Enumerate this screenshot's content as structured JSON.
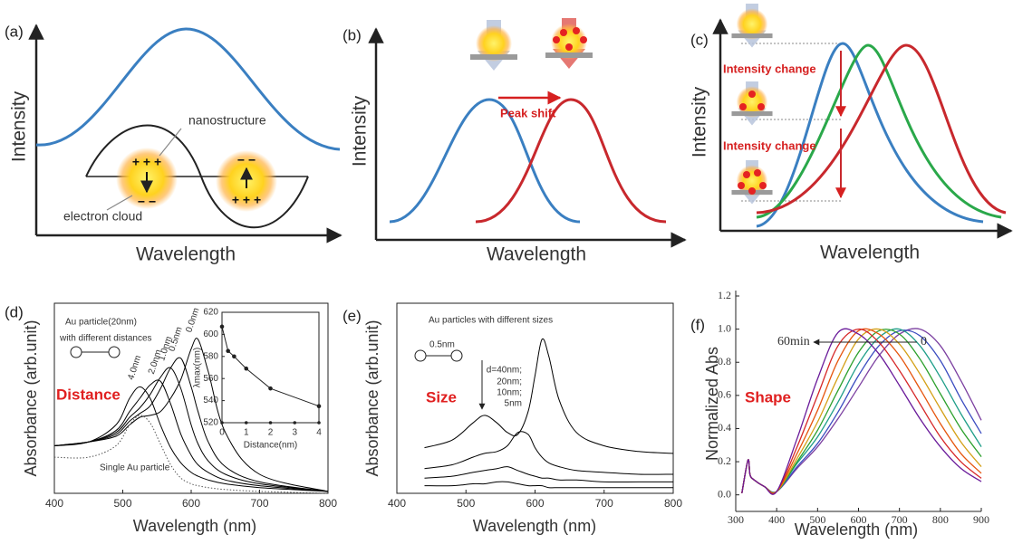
{
  "panels": [
    {
      "label": "(a)",
      "x_label": "Wavelength",
      "y_label": "Intensity",
      "annotations": [
        "nanostructure",
        "electron cloud",
        "+ + +",
        "− −",
        "− −",
        "+ + +"
      ]
    },
    {
      "label": "(b)",
      "x_label": "Wavelength",
      "y_label": "Intensity",
      "annotations": [
        "Peak shift"
      ]
    },
    {
      "label": "(c)",
      "x_label": "Wavelength",
      "y_label": "Intensity",
      "annotations": [
        "Intensity change",
        "Intensity change"
      ]
    }
  ],
  "chart_data": [
    {
      "type": "line",
      "label": "(d)",
      "x_label": "Wavelength (nm)",
      "y_label": "Absorbance (arb.unit)",
      "annotations": [
        "Au particle(20nm)",
        "with different distances",
        "Distance"
      ],
      "xlim": [
        400,
        800
      ],
      "xticks": [
        400,
        500,
        600,
        700,
        800
      ],
      "ylim": [
        0,
        1
      ],
      "x": [
        400,
        450,
        490,
        510,
        525,
        540,
        555,
        570,
        585,
        600,
        610,
        625,
        650,
        700,
        800
      ],
      "series": [
        {
          "name": "4.0nm",
          "color": "#000000",
          "values": [
            0.25,
            0.27,
            0.36,
            0.5,
            0.56,
            0.5,
            0.36,
            0.24,
            0.16,
            0.11,
            0.09,
            0.07,
            0.05,
            0.03,
            0.01
          ]
        },
        {
          "name": "2.0nm",
          "color": "#000000",
          "values": [
            0.25,
            0.27,
            0.33,
            0.43,
            0.5,
            0.57,
            0.59,
            0.47,
            0.31,
            0.2,
            0.15,
            0.11,
            0.07,
            0.04,
            0.01
          ]
        },
        {
          "name": "1.0nm",
          "color": "#000000",
          "values": [
            0.25,
            0.27,
            0.32,
            0.4,
            0.45,
            0.52,
            0.61,
            0.66,
            0.55,
            0.36,
            0.26,
            0.17,
            0.1,
            0.05,
            0.01
          ]
        },
        {
          "name": "0.5nm",
          "color": "#000000",
          "values": [
            0.25,
            0.27,
            0.31,
            0.38,
            0.42,
            0.46,
            0.55,
            0.66,
            0.71,
            0.56,
            0.43,
            0.27,
            0.14,
            0.06,
            0.01
          ]
        },
        {
          "name": "0.0nm",
          "color": "#000000",
          "values": [
            0.25,
            0.27,
            0.3,
            0.36,
            0.4,
            0.41,
            0.43,
            0.5,
            0.6,
            0.76,
            0.81,
            0.64,
            0.32,
            0.1,
            0.01
          ]
        },
        {
          "name": "Single Au particle",
          "color": "#555555",
          "dotted": true,
          "values": [
            0.19,
            0.19,
            0.25,
            0.36,
            0.41,
            0.37,
            0.26,
            0.15,
            0.08,
            0.05,
            0.04,
            0.03,
            0.02,
            0.01,
            0
          ]
        }
      ],
      "inset": {
        "type": "line",
        "x_label": "Distance(nm)",
        "y_label": "λmax(nm)",
        "x": [
          0,
          0.25,
          0.5,
          1,
          2,
          4
        ],
        "values": [
          607,
          585,
          580,
          569,
          551,
          535
        ],
        "xlim": [
          0,
          4
        ],
        "xticks": [
          0,
          1,
          2,
          3,
          4
        ],
        "ylim": [
          520,
          620
        ],
        "yticks": [
          520,
          540,
          560,
          580,
          600,
          620
        ]
      }
    },
    {
      "type": "line",
      "label": "(e)",
      "x_label": "Wavelength (nm)",
      "y_label": "Absorbance (arb.unit)",
      "annotations": [
        "Au particles with different sizes",
        "0.5nm",
        "Size"
      ],
      "xlim": [
        400,
        800
      ],
      "xticks": [
        400,
        500,
        600,
        700,
        800
      ],
      "ylim": [
        0,
        1
      ],
      "x": [
        440,
        480,
        510,
        527,
        545,
        560,
        575,
        590,
        600,
        610,
        620,
        635,
        660,
        700,
        750,
        800
      ],
      "series": [
        {
          "name": "d=40nm;",
          "color": "#000000",
          "values": [
            0.24,
            0.28,
            0.37,
            0.41,
            0.37,
            0.32,
            0.31,
            0.43,
            0.62,
            0.81,
            0.72,
            0.49,
            0.32,
            0.25,
            0.22,
            0.21
          ]
        },
        {
          "name": "20nm;",
          "color": "#000000",
          "values": [
            0.13,
            0.15,
            0.19,
            0.21,
            0.22,
            0.25,
            0.32,
            0.31,
            0.24,
            0.19,
            0.16,
            0.14,
            0.12,
            0.11,
            0.1,
            0.1
          ]
        },
        {
          "name": "10nm;",
          "color": "#000000",
          "values": [
            0.08,
            0.09,
            0.11,
            0.12,
            0.13,
            0.14,
            0.12,
            0.1,
            0.09,
            0.08,
            0.08,
            0.07,
            0.07,
            0.06,
            0.06,
            0.06
          ]
        },
        {
          "name": "5nm",
          "color": "#000000",
          "values": [
            0.04,
            0.04,
            0.05,
            0.05,
            0.06,
            0.06,
            0.05,
            0.04,
            0.04,
            0.04,
            0.03,
            0.03,
            0.03,
            0.03,
            0.03,
            0.03
          ]
        }
      ]
    },
    {
      "type": "line",
      "label": "(f)",
      "x_label": "Wavelength (nm)",
      "y_label": "Normalized Abs",
      "annotations": [
        "60min",
        "0",
        "Shape"
      ],
      "xlim": [
        300,
        900
      ],
      "xticks": [
        300,
        400,
        500,
        600,
        700,
        800,
        900
      ],
      "ylim": [
        -0.1,
        1.2
      ],
      "yticks": [
        {
          "value": 0,
          "label": "0.0"
        },
        {
          "value": 0.2,
          "label": "0.2"
        },
        {
          "value": 0.4,
          "label": "0.4"
        },
        {
          "value": 0.6,
          "label": "0.6"
        },
        {
          "value": 0.8,
          "label": "0.8"
        },
        {
          "value": 1,
          "label": "1.0"
        },
        {
          "value": 1.2,
          "label": "1.2"
        }
      ],
      "x": [
        315,
        330,
        335,
        345,
        370,
        400,
        450,
        500,
        550,
        600,
        650,
        700,
        750,
        800,
        850,
        900
      ],
      "series": [
        {
          "color": "#7b3fa0",
          "values": [
            0.01,
            0.21,
            0.12,
            0.09,
            0.05,
            0.02,
            0.16,
            0.29,
            0.46,
            0.65,
            0.84,
            0.97,
            1.0,
            0.9,
            0.69,
            0.45
          ]
        },
        {
          "color": "#3b4cc0",
          "values": [
            0.01,
            0.21,
            0.12,
            0.09,
            0.05,
            0.02,
            0.17,
            0.31,
            0.5,
            0.72,
            0.9,
            0.99,
            0.96,
            0.81,
            0.58,
            0.37
          ]
        },
        {
          "color": "#1f9e89",
          "values": [
            0.01,
            0.21,
            0.12,
            0.09,
            0.05,
            0.02,
            0.19,
            0.35,
            0.56,
            0.79,
            0.95,
            1.0,
            0.9,
            0.71,
            0.49,
            0.29
          ]
        },
        {
          "color": "#2ca02c",
          "values": [
            0.01,
            0.21,
            0.12,
            0.09,
            0.05,
            0.02,
            0.2,
            0.39,
            0.63,
            0.86,
            0.99,
            0.97,
            0.82,
            0.61,
            0.4,
            0.23
          ]
        },
        {
          "color": "#d4a017",
          "values": [
            0.01,
            0.21,
            0.12,
            0.09,
            0.05,
            0.02,
            0.22,
            0.44,
            0.71,
            0.94,
            1.0,
            0.91,
            0.73,
            0.52,
            0.32,
            0.17
          ]
        },
        {
          "color": "#e6550d",
          "values": [
            0.01,
            0.21,
            0.12,
            0.09,
            0.05,
            0.02,
            0.25,
            0.51,
            0.81,
            0.99,
            0.97,
            0.84,
            0.64,
            0.43,
            0.25,
            0.13
          ]
        },
        {
          "color": "#d62728",
          "values": [
            0.01,
            0.21,
            0.12,
            0.09,
            0.05,
            0.02,
            0.29,
            0.6,
            0.9,
            1.0,
            0.92,
            0.75,
            0.55,
            0.35,
            0.2,
            0.1
          ]
        },
        {
          "color": "#6a1b9a",
          "values": [
            0.01,
            0.21,
            0.12,
            0.09,
            0.05,
            0.02,
            0.34,
            0.7,
            0.98,
            0.97,
            0.85,
            0.66,
            0.46,
            0.29,
            0.16,
            0.08
          ]
        }
      ]
    }
  ]
}
